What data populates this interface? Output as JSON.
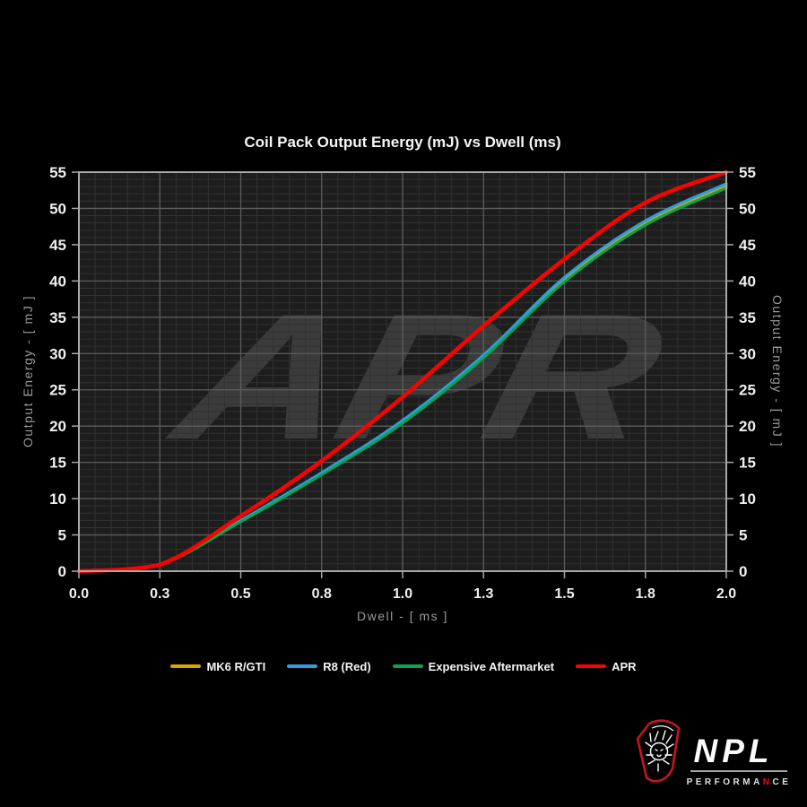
{
  "chart_data": {
    "type": "line",
    "title": "Coil Pack Output Energy (mJ) vs Dwell (ms)",
    "xlabel": "Dwell - [ ms ]",
    "ylabel_left": "Output Energy - [ mJ ]",
    "ylabel_right": "Output Energy - [ mJ ]",
    "watermark": "APR",
    "xlim": [
      0,
      2
    ],
    "ylim": [
      0,
      55
    ],
    "xtick_values": [
      0,
      0.25,
      0.5,
      0.75,
      1.0,
      1.25,
      1.5,
      1.75,
      2.0
    ],
    "xtick_labels": [
      "0.0",
      "0.3",
      "0.5",
      "0.8",
      "1.0",
      "1.3",
      "1.5",
      "1.8",
      "2.0"
    ],
    "ytick_step": 5,
    "minor_x_step": 0.05,
    "minor_y_step": 1,
    "grid": true,
    "legend_position": "bottom",
    "x": [
      0,
      0.25,
      0.5,
      0.75,
      1.0,
      1.25,
      1.5,
      1.75,
      2.0
    ],
    "series": [
      {
        "name": "MK6 R/GTI",
        "color": "#d9a404",
        "line_width": 3,
        "values": [
          0,
          0.9,
          6.9,
          13.5,
          20.6,
          29.6,
          40.2,
          48.0,
          53.1
        ]
      },
      {
        "name": "R8 (Red)",
        "color": "#2d9fe0",
        "line_width": 3,
        "values": [
          0,
          0.9,
          7.0,
          13.6,
          20.8,
          29.8,
          40.5,
          48.3,
          53.4
        ]
      },
      {
        "name": "Expensive Aftermarket",
        "color": "#0fa24c",
        "line_width": 3,
        "values": [
          0,
          0.9,
          6.8,
          13.3,
          20.4,
          29.4,
          39.9,
          47.7,
          52.8
        ]
      },
      {
        "name": "APR",
        "color": "#f50400",
        "line_width": 4.5,
        "values": [
          0,
          0.9,
          7.6,
          15.2,
          24.0,
          33.8,
          43.0,
          50.8,
          55.0
        ]
      }
    ]
  },
  "colors": {
    "background": "#000000",
    "plot_bg": "#1d1d1d",
    "grid_minor": "#323232",
    "grid_major": "#5d5d5d",
    "frame": "#a8a8a8",
    "tick": "#a8a8a8",
    "tick_label": "#f0f0f0",
    "axis_label": "#9a9a9a",
    "watermark": "#3b3b3b",
    "logo_red": "#c51522"
  },
  "logo": {
    "brand": "NPL",
    "sub_pre": "PERFORMA",
    "sub_accent": "N",
    "sub_post": "CE"
  }
}
